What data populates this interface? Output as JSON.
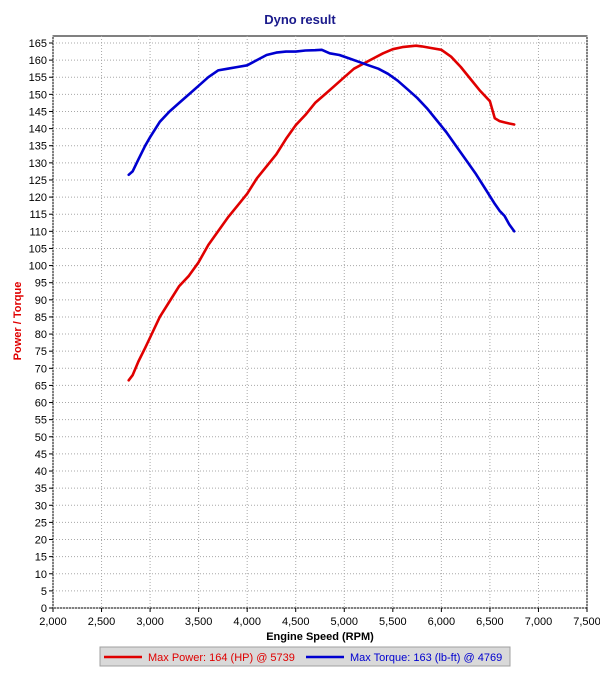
{
  "chart_data": {
    "type": "line",
    "title": "Dyno result",
    "xlabel": "Engine Speed (RPM)",
    "ylabel": "Power / Torque",
    "xlim": [
      2000,
      7500
    ],
    "ylim": [
      0,
      165
    ],
    "x_ticks": [
      2000,
      2500,
      3000,
      3500,
      4000,
      4500,
      5000,
      5500,
      6000,
      6500,
      7000,
      7500
    ],
    "x_tick_labels": [
      "2,000",
      "2,500",
      "3,000",
      "3,500",
      "4,000",
      "4,500",
      "5,000",
      "5,500",
      "6,000",
      "6,500",
      "7,000",
      "7,500"
    ],
    "y_ticks": [
      0,
      5,
      10,
      15,
      20,
      25,
      30,
      35,
      40,
      45,
      50,
      55,
      60,
      65,
      70,
      75,
      80,
      85,
      90,
      95,
      100,
      105,
      110,
      115,
      120,
      125,
      130,
      135,
      140,
      145,
      150,
      155,
      160,
      165
    ],
    "grid": true,
    "legend_position": "bottom",
    "series": [
      {
        "name": "Max Power: 164 (HP) @ 5739",
        "color": "#e00000",
        "x": [
          2780,
          2820,
          2880,
          2950,
          3000,
          3100,
          3200,
          3300,
          3400,
          3500,
          3600,
          3700,
          3800,
          3900,
          4000,
          4100,
          4200,
          4300,
          4400,
          4500,
          4600,
          4700,
          4800,
          4900,
          5000,
          5100,
          5200,
          5300,
          5400,
          5500,
          5600,
          5700,
          5739,
          5800,
          5900,
          6000,
          6100,
          6200,
          6300,
          6400,
          6500,
          6550,
          6600,
          6650,
          6700,
          6750
        ],
        "y": [
          66.5,
          68,
          72,
          76,
          79,
          85,
          89.5,
          94,
          97,
          101,
          106,
          110,
          114,
          117.5,
          121,
          125.5,
          129,
          132.5,
          137,
          141,
          144,
          147.5,
          150,
          152.5,
          155,
          157.5,
          159,
          160.5,
          162,
          163.2,
          163.8,
          164.1,
          164.2,
          164,
          163.5,
          163,
          161,
          158,
          154.5,
          151,
          148,
          143,
          142.2,
          141.8,
          141.5,
          141.2
        ]
      },
      {
        "name": "Max Torque: 163 (lb-ft) @ 4769",
        "color": "#0000d0",
        "x": [
          2780,
          2820,
          2880,
          2950,
          3000,
          3100,
          3200,
          3300,
          3400,
          3500,
          3600,
          3700,
          3800,
          3900,
          4000,
          4100,
          4200,
          4300,
          4400,
          4500,
          4600,
          4700,
          4769,
          4850,
          4950,
          5050,
          5150,
          5250,
          5350,
          5450,
          5550,
          5650,
          5750,
          5850,
          5950,
          6050,
          6150,
          6250,
          6350,
          6450,
          6550,
          6600,
          6650,
          6700,
          6750
        ],
        "y": [
          126.5,
          127.5,
          131,
          135,
          137.5,
          142,
          145,
          147.5,
          150,
          152.5,
          155,
          157,
          157.5,
          158,
          158.5,
          160,
          161.5,
          162.2,
          162.5,
          162.5,
          162.8,
          162.9,
          163,
          162,
          161.5,
          160.5,
          159.5,
          158.5,
          157.5,
          156,
          154,
          151.5,
          149,
          146,
          142.5,
          139,
          135,
          131,
          127,
          122.5,
          118,
          116,
          114.5,
          112,
          110
        ]
      }
    ]
  }
}
